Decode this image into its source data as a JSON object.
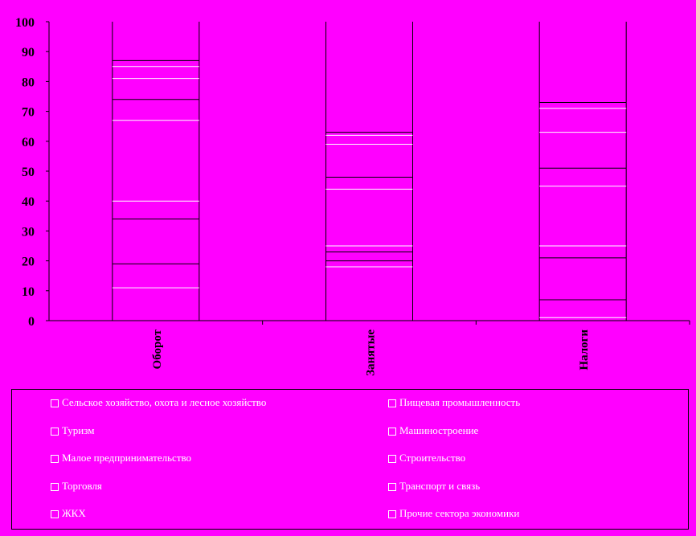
{
  "chart_data": {
    "type": "bar",
    "stacked": true,
    "categories": [
      "Оборот",
      "Занятые",
      "Налоги"
    ],
    "ylim": [
      0,
      100
    ],
    "yticks": [
      "0",
      "10",
      "20",
      "30",
      "40",
      "50",
      "60",
      "70",
      "80",
      "90",
      "100"
    ],
    "series_boundaries": [
      {
        "category": "Оборот",
        "boundaries": [
          11,
          19,
          34,
          40,
          67,
          74,
          81,
          85,
          87
        ]
      },
      {
        "category": "Занятые",
        "boundaries": [
          18,
          20,
          23,
          25,
          44,
          48,
          59,
          62,
          63
        ]
      },
      {
        "category": "Налоги",
        "boundaries": [
          1,
          7,
          21,
          25,
          45,
          51,
          63,
          71,
          73
        ]
      }
    ],
    "segment_line_colors": [
      "#ffffff",
      "#000000",
      "#000000",
      "#ffffff",
      "#ffffff",
      "#000000",
      "#ffffff",
      "#ffffff",
      "#000000"
    ],
    "legend": [
      "Сельское хозяйство, охота и лесное хозяйство",
      "Пищевая промышленность",
      "Туризм",
      "Машиностроение",
      "Малое предпринимательство",
      "Строительство",
      "Торговля",
      "Транспорт и связь",
      "ЖКХ",
      "Прочие сектора экономики"
    ],
    "background": "#ff00ff",
    "grid": false
  }
}
